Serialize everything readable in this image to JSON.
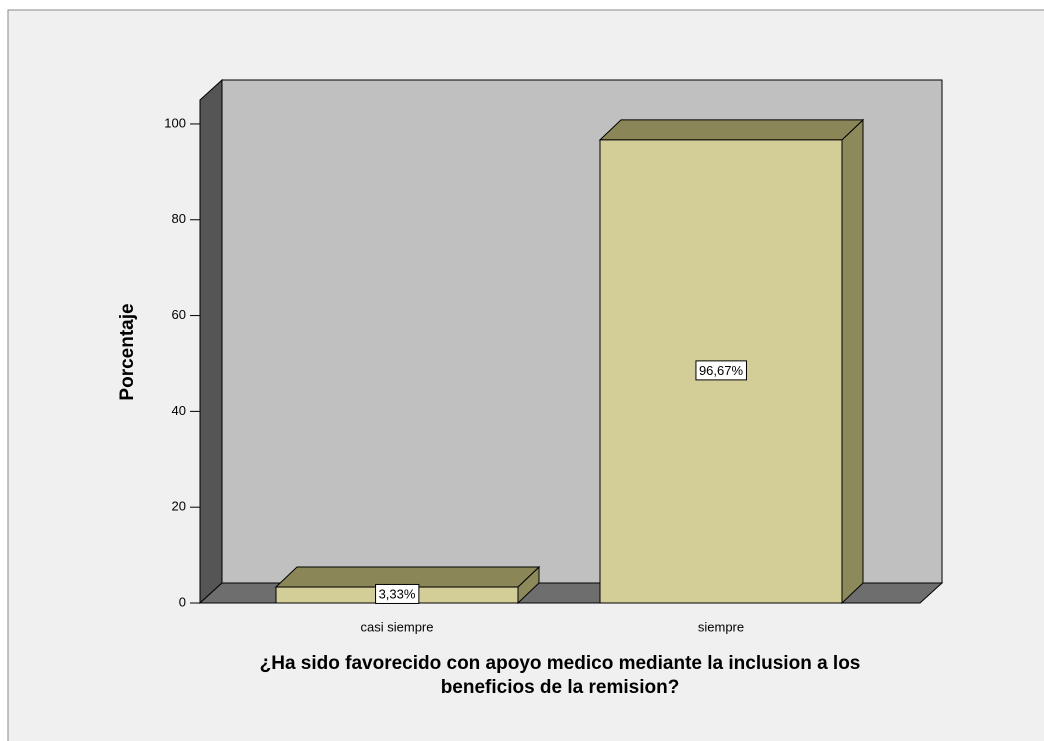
{
  "chart_data": {
    "type": "bar3d",
    "categories": [
      "casi siempre",
      "siempre"
    ],
    "values": [
      3.33,
      96.67
    ],
    "value_labels": [
      "3,33%",
      "96,67%"
    ],
    "ylabel": "Porcentaje",
    "xlabel": "¿Ha sido favorecido con apoyo medico mediante la inclusion a los beneficios de la remision?",
    "ylim": [
      0,
      105
    ],
    "yticks": [
      0,
      20,
      40,
      60,
      80,
      100
    ],
    "color": "#d3ce97"
  }
}
